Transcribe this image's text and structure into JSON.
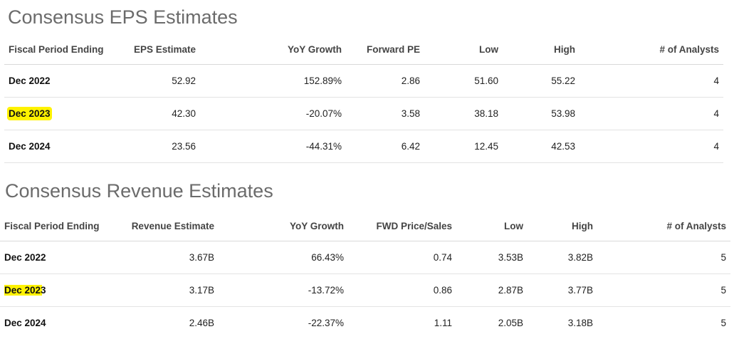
{
  "eps": {
    "title": "Consensus EPS Estimates",
    "headers": [
      "Fiscal Period Ending",
      "EPS Estimate",
      "YoY Growth",
      "Forward PE",
      "Low",
      "High",
      "# of Analysts"
    ],
    "rows": [
      [
        "Dec 2022",
        "52.92",
        "152.89%",
        "2.86",
        "51.60",
        "55.22",
        "4"
      ],
      [
        "Dec 2023",
        "42.30",
        "-20.07%",
        "3.58",
        "38.18",
        "53.98",
        "4"
      ],
      [
        "Dec 2024",
        "23.56",
        "-44.31%",
        "6.42",
        "12.45",
        "42.53",
        "4"
      ]
    ]
  },
  "revenue": {
    "title": "Consensus Revenue Estimates",
    "headers": [
      "Fiscal Period Ending",
      "Revenue Estimate",
      "YoY Growth",
      "FWD Price/Sales",
      "Low",
      "High",
      "# of Analysts"
    ],
    "rows": [
      [
        "Dec 2022",
        "3.67B",
        "66.43%",
        "0.74",
        "3.53B",
        "3.82B",
        "5"
      ],
      [
        "Dec 2023",
        "3.17B",
        "-13.72%",
        "0.86",
        "2.87B",
        "3.77B",
        "5"
      ],
      [
        "Dec 2024",
        "2.46B",
        "-22.37%",
        "1.11",
        "2.05B",
        "3.18B",
        "5"
      ]
    ]
  },
  "highlight_color": "#fff200"
}
